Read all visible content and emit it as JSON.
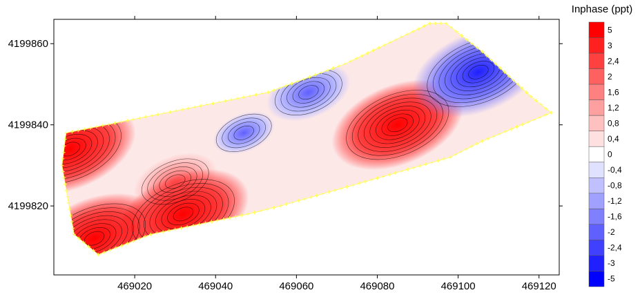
{
  "chart_data": {
    "type": "heatmap",
    "title": "",
    "xlabel": "",
    "ylabel": "",
    "xlim": [
      469000,
      469125
    ],
    "ylim": [
      4199803,
      4199866
    ],
    "x_ticks": [
      469020,
      469040,
      469060,
      469080,
      469100,
      469120
    ],
    "x_tick_labels": [
      "469020",
      "469040",
      "469060",
      "469080",
      "469100",
      "469120"
    ],
    "y_ticks": [
      4199820,
      4199840,
      4199860
    ],
    "y_tick_labels": [
      "4199820",
      "4199840",
      "4199860"
    ],
    "grid": false,
    "survey_outline": [
      [
        469003,
        4199838
      ],
      [
        469053,
        4199848
      ],
      [
        469072,
        4199855
      ],
      [
        469093,
        4199865
      ],
      [
        469097,
        4199865
      ],
      [
        469106,
        4199858
      ],
      [
        469118,
        4199847
      ],
      [
        469123,
        4199843
      ],
      [
        469106,
        4199836
      ],
      [
        469098,
        4199832
      ],
      [
        469056,
        4199820
      ],
      [
        469048,
        4199818
      ],
      [
        469024,
        4199813
      ],
      [
        469011,
        4199808
      ],
      [
        469005,
        4199813
      ],
      [
        469002,
        4199830
      ]
    ],
    "anomalies": [
      {
        "x": 469085,
        "y": 4199840,
        "value": 5,
        "label": "strong positive"
      },
      {
        "x": 469105,
        "y": 4199853,
        "value": -5,
        "label": "strong negative"
      },
      {
        "x": 469063,
        "y": 4199848,
        "value": -2.4,
        "label": "negative"
      },
      {
        "x": 469047,
        "y": 4199838,
        "value": -1.2,
        "label": "negative"
      },
      {
        "x": 469030,
        "y": 4199826,
        "value": 2.4,
        "label": "positive"
      },
      {
        "x": 469010,
        "y": 4199812,
        "value": 5,
        "label": "strong positive"
      },
      {
        "x": 469004,
        "y": 4199834,
        "value": 5,
        "label": "strong positive"
      },
      {
        "x": 469032,
        "y": 4199818,
        "value": 5,
        "label": "strong positive"
      }
    ],
    "legend": {
      "title": "Inphase (ppt)",
      "placement": "right",
      "levels": [
        {
          "label": "5",
          "color": "#ff0000"
        },
        {
          "label": "3",
          "color": "#ff2020"
        },
        {
          "label": "2,4",
          "color": "#ff4040"
        },
        {
          "label": "2",
          "color": "#ff6060"
        },
        {
          "label": "1,6",
          "color": "#ff8080"
        },
        {
          "label": "1,2",
          "color": "#ffa0a0"
        },
        {
          "label": "0,8",
          "color": "#ffc0c0"
        },
        {
          "label": "0,4",
          "color": "#ffe0e0"
        },
        {
          "label": "0",
          "color": "#ffffff"
        },
        {
          "label": "-0,4",
          "color": "#e0e0ff"
        },
        {
          "label": "-0,8",
          "color": "#c0c0ff"
        },
        {
          "label": "-1,2",
          "color": "#a0a0ff"
        },
        {
          "label": "-1,6",
          "color": "#8080ff"
        },
        {
          "label": "-2",
          "color": "#6060ff"
        },
        {
          "label": "-2,4",
          "color": "#4040ff"
        },
        {
          "label": "-3",
          "color": "#2020ff"
        },
        {
          "label": "-5",
          "color": "#0000ff"
        }
      ]
    }
  }
}
